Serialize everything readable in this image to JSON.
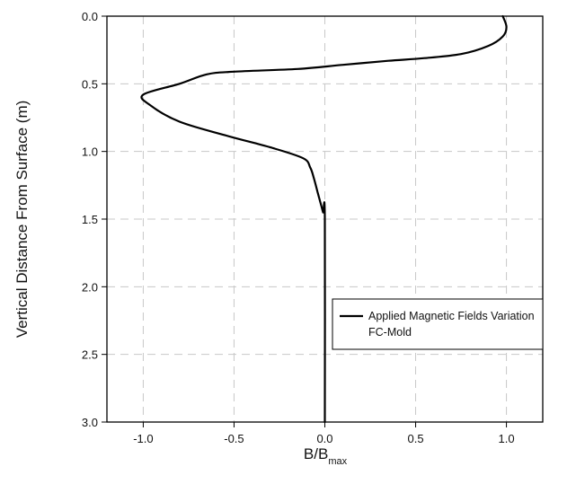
{
  "chart_data": {
    "type": "line",
    "title": "",
    "xlabel": {
      "main": "B/B",
      "sub": "max"
    },
    "ylabel": "Vertical Distance From Surface (m)",
    "xlim": [
      -1.2,
      1.2
    ],
    "ylim": [
      0.0,
      3.0
    ],
    "y_inverted": true,
    "xticks": [
      "-1.0",
      "-0.5",
      "0.0",
      "0.5",
      "1.0"
    ],
    "yticks": [
      "0.0",
      "0.5",
      "1.0",
      "1.5",
      "2.0",
      "2.5",
      "3.0"
    ],
    "grid": true,
    "legend_position": "center-right",
    "series": [
      {
        "name": "Applied Magnetic Fields Variation FC-Mold",
        "color": "#000000",
        "x": [
          0.98,
          1.0,
          0.98,
          0.9,
          0.75,
          0.55,
          0.35,
          0.1,
          -0.15,
          -0.5,
          -0.65,
          -0.8,
          -1.0,
          -0.96,
          -0.8,
          -0.55,
          -0.3,
          -0.12,
          -0.08,
          -0.06,
          -0.04,
          -0.02,
          -0.01,
          0.0,
          0.0
        ],
        "y": [
          0.0,
          0.08,
          0.15,
          0.22,
          0.28,
          0.31,
          0.33,
          0.36,
          0.39,
          0.41,
          0.43,
          0.5,
          0.58,
          0.66,
          0.78,
          0.88,
          0.97,
          1.05,
          1.12,
          1.2,
          1.3,
          1.4,
          1.45,
          1.5,
          3.0
        ]
      }
    ]
  },
  "legend": {
    "line1": "Applied Magnetic Fields Variation",
    "line2": "FC-Mold"
  }
}
